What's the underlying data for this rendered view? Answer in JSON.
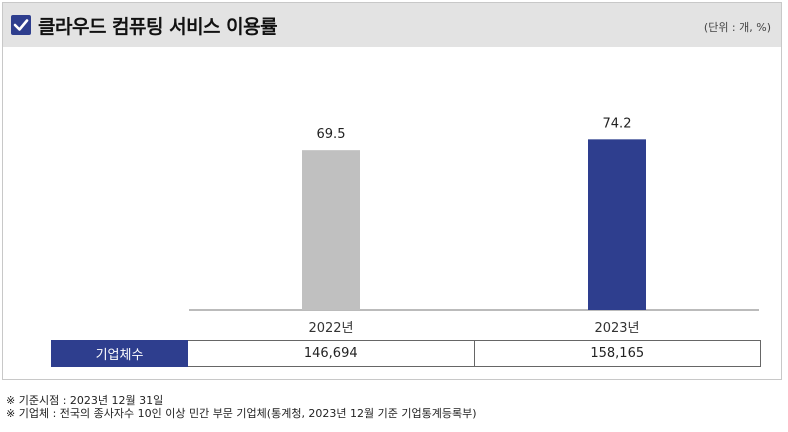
{
  "title": "클라우드 컴퓨팅 서비스 이용률",
  "unit": "(단위 : 개, %)",
  "colors": {
    "bar_2022": "#c0c0c0",
    "bar_2023": "#2e3e8e",
    "header": "#2e3e8e"
  },
  "chart_data": {
    "type": "bar",
    "categories": [
      "2022년",
      "2023년"
    ],
    "values": [
      69.5,
      74.2
    ],
    "title": "클라우드 컴퓨팅 서비스 이용률",
    "xlabel": "",
    "ylabel": "",
    "ylim": [
      0,
      100
    ],
    "grid": false
  },
  "table": {
    "row_header": "기업체수",
    "values": [
      "146,694",
      "158,165"
    ]
  },
  "notes": [
    "※ 기준시점 : 2023년 12월 31일",
    "※ 기업체 : 전국의 종사자수 10인 이상 민간 부문 기업체(통계청, 2023년 12월 기준 기업통계등록부)"
  ]
}
